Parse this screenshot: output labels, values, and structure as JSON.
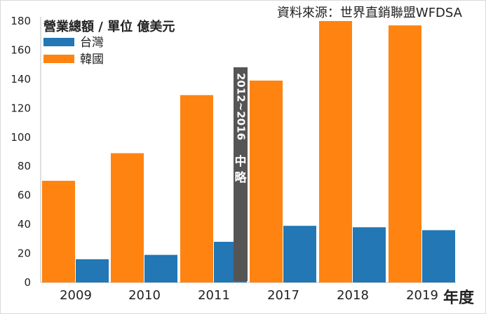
{
  "source": "資料來源：世界直銷聯盟WFDSA",
  "chart_data": {
    "type": "bar",
    "title": "營業總額 / 單位 億美元",
    "xlabel": "年度",
    "ylabel": "",
    "ylim": [
      0,
      180
    ],
    "yticks": [
      0,
      20,
      40,
      60,
      80,
      100,
      120,
      140,
      160,
      180
    ],
    "categories": [
      "2009",
      "2010",
      "2011",
      "2017",
      "2018",
      "2019"
    ],
    "series": [
      {
        "name": "台灣",
        "color": "#2277b4",
        "values": [
          16,
          19,
          28,
          39,
          38,
          36
        ]
      },
      {
        "name": "韓國",
        "color": "#ff8311",
        "values": [
          70,
          89,
          129,
          139,
          180,
          177
        ]
      }
    ],
    "break_label": "2012~2016 中略",
    "legend": "top-left"
  }
}
